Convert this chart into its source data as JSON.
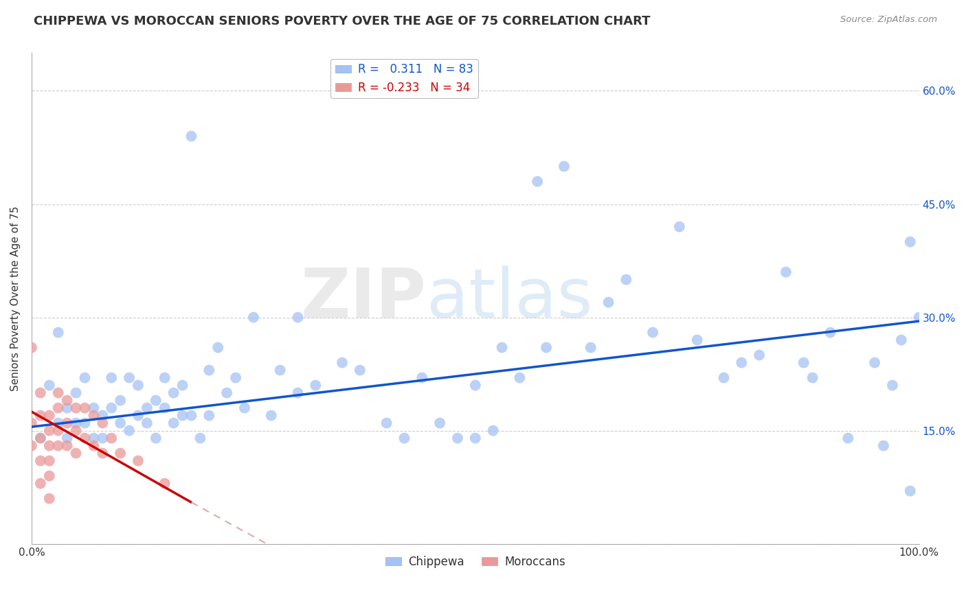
{
  "title": "CHIPPEWA VS MOROCCAN SENIORS POVERTY OVER THE AGE OF 75 CORRELATION CHART",
  "source": "Source: ZipAtlas.com",
  "ylabel": "Seniors Poverty Over the Age of 75",
  "xlim": [
    0,
    1.0
  ],
  "ylim": [
    0,
    0.65
  ],
  "yticks": [
    0.0,
    0.15,
    0.3,
    0.45,
    0.6
  ],
  "yticklabels": [
    "",
    "15.0%",
    "30.0%",
    "45.0%",
    "60.0%"
  ],
  "chippewa_color": "#a4c2f4",
  "moroccan_color": "#ea9999",
  "chippewa_line_color": "#1155cc",
  "moroccan_line_color": "#cc0000",
  "moroccan_line_ext_color": "#ddaaaa",
  "R_chippewa": 0.311,
  "N_chippewa": 83,
  "R_moroccan": -0.233,
  "N_moroccan": 34,
  "background_color": "#ffffff",
  "grid_color": "#cccccc",
  "watermark_zip": "ZIP",
  "watermark_atlas": "atlas",
  "title_fontsize": 13,
  "axis_label_fontsize": 11,
  "tick_fontsize": 11,
  "legend_fontsize": 12,
  "chippewa_x": [
    0.01,
    0.02,
    0.03,
    0.03,
    0.04,
    0.04,
    0.05,
    0.05,
    0.06,
    0.06,
    0.07,
    0.07,
    0.08,
    0.08,
    0.09,
    0.09,
    0.1,
    0.1,
    0.11,
    0.11,
    0.12,
    0.12,
    0.13,
    0.13,
    0.14,
    0.14,
    0.15,
    0.15,
    0.16,
    0.16,
    0.17,
    0.17,
    0.18,
    0.18,
    0.19,
    0.2,
    0.2,
    0.21,
    0.22,
    0.23,
    0.24,
    0.25,
    0.27,
    0.28,
    0.3,
    0.3,
    0.32,
    0.35,
    0.37,
    0.4,
    0.42,
    0.44,
    0.46,
    0.48,
    0.5,
    0.5,
    0.52,
    0.53,
    0.55,
    0.57,
    0.58,
    0.6,
    0.63,
    0.65,
    0.67,
    0.7,
    0.73,
    0.75,
    0.78,
    0.8,
    0.82,
    0.85,
    0.87,
    0.88,
    0.9,
    0.92,
    0.95,
    0.96,
    0.97,
    0.98,
    0.99,
    0.99,
    1.0
  ],
  "chippewa_y": [
    0.14,
    0.21,
    0.16,
    0.28,
    0.18,
    0.14,
    0.2,
    0.16,
    0.22,
    0.16,
    0.14,
    0.18,
    0.17,
    0.14,
    0.22,
    0.18,
    0.19,
    0.16,
    0.22,
    0.15,
    0.21,
    0.17,
    0.18,
    0.16,
    0.19,
    0.14,
    0.22,
    0.18,
    0.2,
    0.16,
    0.21,
    0.17,
    0.54,
    0.17,
    0.14,
    0.23,
    0.17,
    0.26,
    0.2,
    0.22,
    0.18,
    0.3,
    0.17,
    0.23,
    0.2,
    0.3,
    0.21,
    0.24,
    0.23,
    0.16,
    0.14,
    0.22,
    0.16,
    0.14,
    0.14,
    0.21,
    0.15,
    0.26,
    0.22,
    0.48,
    0.26,
    0.5,
    0.26,
    0.32,
    0.35,
    0.28,
    0.42,
    0.27,
    0.22,
    0.24,
    0.25,
    0.36,
    0.24,
    0.22,
    0.28,
    0.14,
    0.24,
    0.13,
    0.21,
    0.27,
    0.07,
    0.4,
    0.3
  ],
  "moroccan_x": [
    0.0,
    0.0,
    0.0,
    0.01,
    0.01,
    0.01,
    0.01,
    0.01,
    0.02,
    0.02,
    0.02,
    0.02,
    0.02,
    0.02,
    0.03,
    0.03,
    0.03,
    0.03,
    0.04,
    0.04,
    0.04,
    0.05,
    0.05,
    0.05,
    0.06,
    0.06,
    0.07,
    0.07,
    0.08,
    0.08,
    0.09,
    0.1,
    0.12,
    0.15
  ],
  "moroccan_y": [
    0.16,
    0.13,
    0.26,
    0.2,
    0.17,
    0.14,
    0.11,
    0.08,
    0.17,
    0.15,
    0.13,
    0.11,
    0.09,
    0.06,
    0.2,
    0.18,
    0.15,
    0.13,
    0.19,
    0.16,
    0.13,
    0.18,
    0.15,
    0.12,
    0.18,
    0.14,
    0.17,
    0.13,
    0.16,
    0.12,
    0.14,
    0.12,
    0.11,
    0.08
  ]
}
